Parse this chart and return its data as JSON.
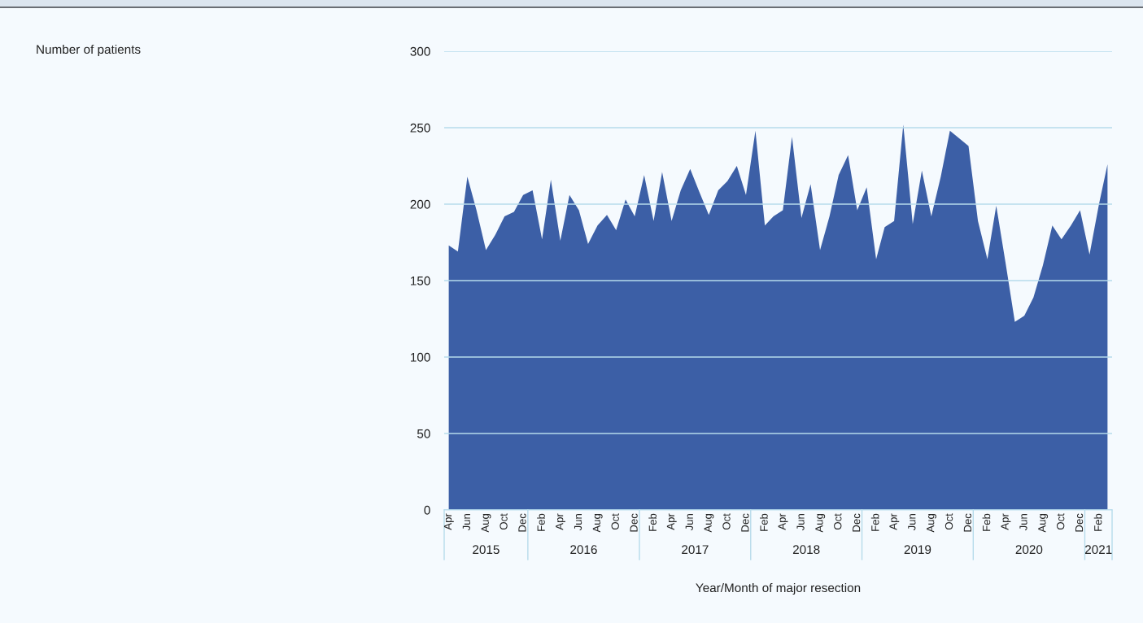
{
  "chart_data": {
    "type": "area",
    "xlabel": "Year/Month of major resection",
    "x": [
      "2015-04",
      "2015-05",
      "2015-06",
      "2015-07",
      "2015-08",
      "2015-09",
      "2015-10",
      "2015-11",
      "2015-12",
      "2016-01",
      "2016-02",
      "2016-03",
      "2016-04",
      "2016-05",
      "2016-06",
      "2016-07",
      "2016-08",
      "2016-09",
      "2016-10",
      "2016-11",
      "2016-12",
      "2017-01",
      "2017-02",
      "2017-03",
      "2017-04",
      "2017-05",
      "2017-06",
      "2017-07",
      "2017-08",
      "2017-09",
      "2017-10",
      "2017-11",
      "2017-12",
      "2018-01",
      "2018-02",
      "2018-03",
      "2018-04",
      "2018-05",
      "2018-06",
      "2018-07",
      "2018-08",
      "2018-09",
      "2018-10",
      "2018-11",
      "2018-12",
      "2019-01",
      "2019-02",
      "2019-03",
      "2019-04",
      "2019-05",
      "2019-06",
      "2019-07",
      "2019-08",
      "2019-09",
      "2019-10",
      "2019-11",
      "2019-12",
      "2020-01",
      "2020-02",
      "2020-03",
      "2020-04",
      "2020-05",
      "2020-06",
      "2020-07",
      "2020-08",
      "2020-09",
      "2020-10",
      "2020-11",
      "2020-12",
      "2021-01",
      "2021-02",
      "2021-03"
    ],
    "series": [
      {
        "color": "#3c5fa6",
        "values": [
          173,
          169,
          218,
          196,
          170,
          180,
          192,
          195,
          206,
          209,
          177,
          216,
          176,
          206,
          196,
          174,
          186,
          193,
          183,
          203,
          192,
          219,
          189,
          221,
          189,
          209,
          223,
          208,
          193,
          209,
          215,
          225,
          206,
          248,
          186,
          192,
          196,
          244,
          191,
          213,
          170,
          192,
          219,
          232,
          196,
          211,
          164,
          185,
          189,
          252,
          187,
          222,
          192,
          218,
          248,
          243,
          238,
          189,
          164,
          199,
          161,
          123,
          127,
          139,
          160,
          186,
          177,
          186,
          196,
          167,
          200,
          226
        ]
      }
    ],
    "xlim": [
      "2015-03-17",
      "2021-03-16"
    ],
    "xticks": [
      {
        "value": "2015-04",
        "label": "Apr"
      },
      {
        "value": "2015-06",
        "label": "Jun"
      },
      {
        "value": "2015-08",
        "label": "Aug"
      },
      {
        "value": "2015-10",
        "label": "Oct"
      },
      {
        "value": "2015-12",
        "label": "Dec"
      },
      {
        "value": "2016-02",
        "label": "Feb"
      },
      {
        "value": "2016-04",
        "label": "Apr"
      },
      {
        "value": "2016-06",
        "label": "Jun"
      },
      {
        "value": "2016-08",
        "label": "Aug"
      },
      {
        "value": "2016-10",
        "label": "Oct"
      },
      {
        "value": "2016-12",
        "label": "Dec"
      },
      {
        "value": "2017-02",
        "label": "Feb"
      },
      {
        "value": "2017-04",
        "label": "Apr"
      },
      {
        "value": "2017-06",
        "label": "Jun"
      },
      {
        "value": "2017-08",
        "label": "Aug"
      },
      {
        "value": "2017-10",
        "label": "Oct"
      },
      {
        "value": "2017-12",
        "label": "Dec"
      },
      {
        "value": "2018-02",
        "label": "Feb"
      },
      {
        "value": "2018-04",
        "label": "Apr"
      },
      {
        "value": "2018-06",
        "label": "Jun"
      },
      {
        "value": "2018-08",
        "label": "Aug"
      },
      {
        "value": "2018-10",
        "label": "Oct"
      },
      {
        "value": "2018-12",
        "label": "Dec"
      },
      {
        "value": "2019-02",
        "label": "Feb"
      },
      {
        "value": "2019-04",
        "label": "Apr"
      },
      {
        "value": "2019-06",
        "label": "Jun"
      },
      {
        "value": "2019-08",
        "label": "Aug"
      },
      {
        "value": "2019-10",
        "label": "Oct"
      },
      {
        "value": "2019-12",
        "label": "Dec"
      },
      {
        "value": "2020-02",
        "label": "Feb"
      },
      {
        "value": "2020-04",
        "label": "Apr"
      },
      {
        "value": "2020-06",
        "label": "Jun"
      },
      {
        "value": "2020-08",
        "label": "Aug"
      },
      {
        "value": "2020-10",
        "label": "Oct"
      },
      {
        "value": "2020-12",
        "label": "Dec"
      },
      {
        "value": "2021-02",
        "label": "Feb"
      }
    ],
    "annotations": [
      "Number of patients",
      "2015",
      "2016",
      "2017",
      "2018",
      "2019",
      "2020",
      "2021"
    ],
    "ylim": [
      0,
      300
    ],
    "yticks": [
      0,
      50,
      100,
      150,
      200,
      250,
      300
    ],
    "grid": "y",
    "legend": false
  }
}
